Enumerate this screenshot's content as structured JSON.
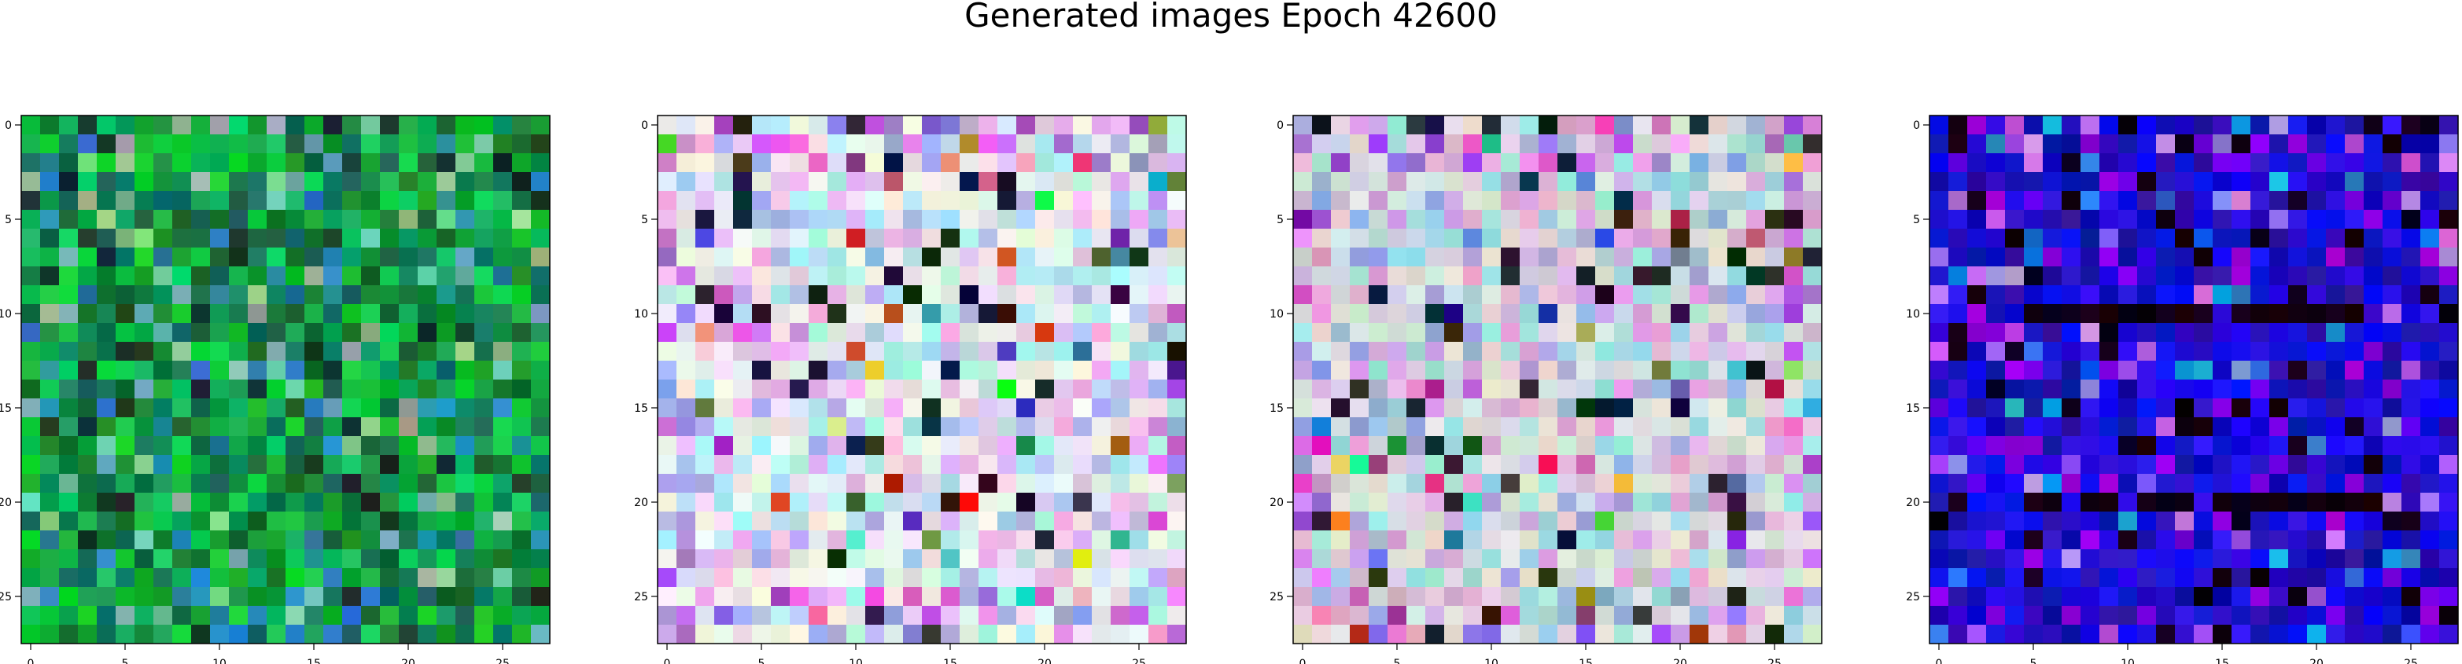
{
  "title": "Generated images Epoch 42600",
  "panels": [
    {
      "theme": "green"
    },
    {
      "theme": "pastel"
    },
    {
      "theme": "pastel2"
    },
    {
      "theme": "blue"
    }
  ],
  "grid_size": 28,
  "axis": {
    "x_ticks": [
      "0",
      "5",
      "10",
      "15",
      "20",
      "25"
    ],
    "y_ticks": [
      "0",
      "5",
      "10",
      "15",
      "20",
      "25"
    ]
  },
  "colors": {
    "frame": "#000000",
    "tick_text": "#000000"
  }
}
